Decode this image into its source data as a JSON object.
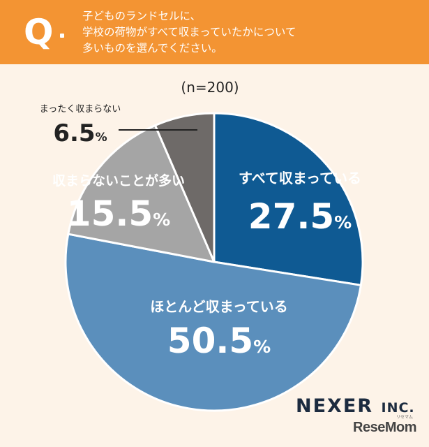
{
  "header": {
    "q_mark": "Q",
    "question_lines": [
      "子どものランドセルに、",
      "学校の荷物がすべて収まっていたかについて",
      "多いものを選んでください。"
    ]
  },
  "chart_data": {
    "type": "pie",
    "n_label": "(n=200)",
    "start": "12 o'clock",
    "direction": "clockwise",
    "unit": "%",
    "slices": [
      {
        "label": "すべて収まっている",
        "value": 27.5,
        "value_text": "27.5",
        "color": "#0f5a93",
        "label_color": "#ffffff"
      },
      {
        "label": "ほとんど収まっている",
        "value": 50.5,
        "value_text": "50.5",
        "color": "#5b8fbc",
        "label_color": "#ffffff"
      },
      {
        "label": "収まらないことが多い",
        "value": 15.5,
        "value_text": "15.5",
        "color": "#a5a5a5",
        "label_color": "#ffffff"
      },
      {
        "label": "まったく収まらない",
        "value": 6.5,
        "value_text": "6.5",
        "color": "#6e6a68",
        "label_color": "#222222"
      }
    ]
  },
  "branding": {
    "logo": "NEXER",
    "logo_suffix": "INC.",
    "source": "ReseMom",
    "source_ruby": "リセマム"
  },
  "colors": {
    "header": "#f39433",
    "background": "#fdf3e8",
    "logo": "#1c2b3f"
  }
}
